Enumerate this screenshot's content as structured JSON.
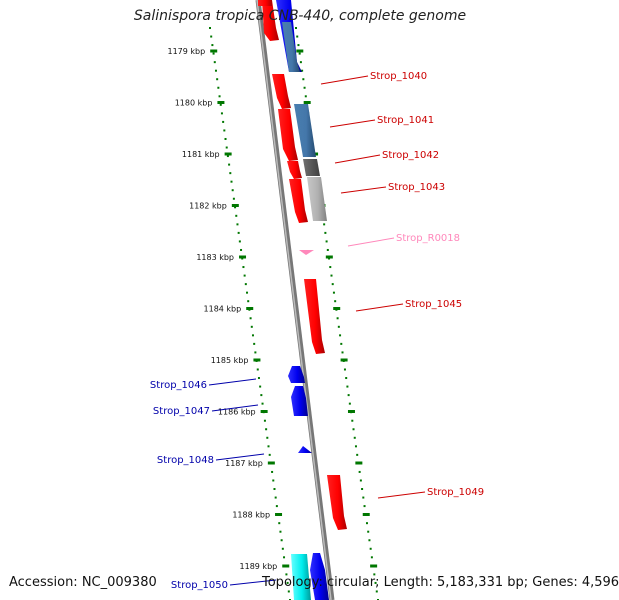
{
  "title": "Salinispora tropica CNB-440, complete genome",
  "footer": {
    "accession": "Accession: NC_009380",
    "topology": "Topology: circular; Length: 5,183,331 bp; Genes: 4,596"
  },
  "scale_labels": [
    "1179 kbp",
    "1180 kbp",
    "1181 kbp",
    "1182 kbp",
    "1183 kbp",
    "1184 kbp",
    "1185 kbp",
    "1186 kbp",
    "1187 kbp",
    "1188 kbp",
    "1189 kbp"
  ],
  "colors": {
    "forward_gene": "#ff0000",
    "reverse_gene": "#0000ff",
    "backbone": "#808080",
    "scale_ticks": "#007700",
    "forward_label": "#cc0000",
    "reverse_label": "#0000aa",
    "rna_label": "#ff88bb"
  },
  "gene_labels": {
    "right": [
      "Strop_1040",
      "Strop_1041",
      "Strop_1042",
      "Strop_1043",
      "Strop_R0018",
      "Strop_1045",
      "Strop_1049"
    ],
    "left": [
      "Strop_1046",
      "Strop_1047",
      "Strop_1048",
      "Strop_1050"
    ]
  }
}
